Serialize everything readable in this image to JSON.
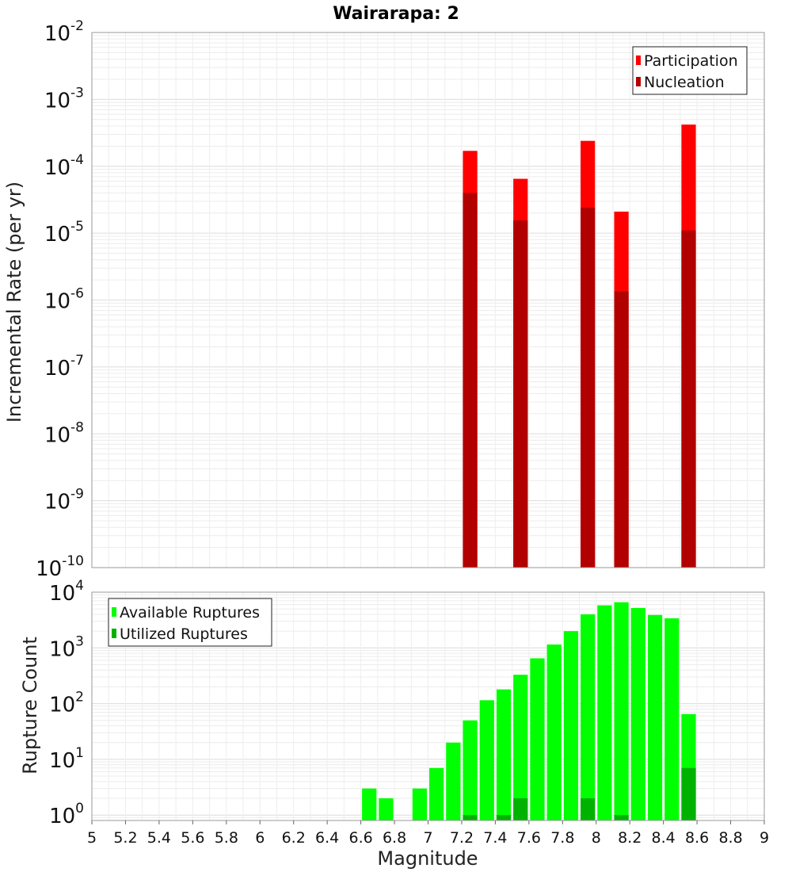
{
  "chart_data": [
    {
      "type": "bar",
      "title": "Wairarapa: 2",
      "xlabel": "",
      "ylabel": "Incremental Rate (per yr)",
      "xlim": [
        5,
        9
      ],
      "ylim": [
        1e-10,
        0.01
      ],
      "yscale": "log",
      "grid": true,
      "bar_width": 0.1,
      "legend": "top-right",
      "x": [
        7.25,
        7.55,
        7.95,
        8.15,
        8.55
      ],
      "series": [
        {
          "name": "Participation",
          "color": "#ff0000",
          "values": [
            0.00017,
            6.5e-05,
            0.00024,
            2.1e-05,
            0.00042
          ]
        },
        {
          "name": "Nucleation",
          "color": "#b20000",
          "values": [
            4e-05,
            1.55e-05,
            2.4e-05,
            1.35e-06,
            1.1e-05
          ]
        }
      ],
      "ytick_exponents": [
        -10,
        -9,
        -8,
        -7,
        -6,
        -5,
        -4,
        -3,
        -2
      ]
    },
    {
      "type": "bar",
      "title": "",
      "xlabel": "Magnitude",
      "ylabel": "Rupture Count",
      "xlim": [
        5,
        9
      ],
      "ylim": [
        0.8,
        10000
      ],
      "yscale": "log",
      "grid": true,
      "bar_width": 0.1,
      "legend": "top-left",
      "x": [
        6.65,
        6.75,
        6.95,
        7.05,
        7.15,
        7.25,
        7.35,
        7.45,
        7.55,
        7.65,
        7.75,
        7.85,
        7.95,
        8.05,
        8.15,
        8.25,
        8.35,
        8.45,
        8.55
      ],
      "series": [
        {
          "name": "Available Ruptures",
          "color": "#00ff00",
          "values": [
            3,
            2,
            3,
            7,
            20,
            50,
            115,
            180,
            330,
            650,
            1150,
            2000,
            4000,
            5800,
            6600,
            5200,
            3900,
            3400,
            65
          ]
        },
        {
          "name": "Utilized Ruptures",
          "color": "#00b200",
          "values": [
            0,
            0,
            0,
            0,
            0,
            1,
            0,
            1,
            2,
            0,
            0,
            0,
            2,
            0,
            1,
            0,
            0,
            0,
            7
          ]
        }
      ],
      "xticks": [
        "5",
        "5.2",
        "5.4",
        "5.6",
        "5.8",
        "6",
        "6.2",
        "6.4",
        "6.6",
        "6.8",
        "7",
        "7.2",
        "7.4",
        "7.6",
        "7.8",
        "8",
        "8.2",
        "8.4",
        "8.6",
        "8.8",
        "9"
      ],
      "ytick_exponents": [
        0,
        1,
        2,
        3,
        4
      ]
    }
  ]
}
